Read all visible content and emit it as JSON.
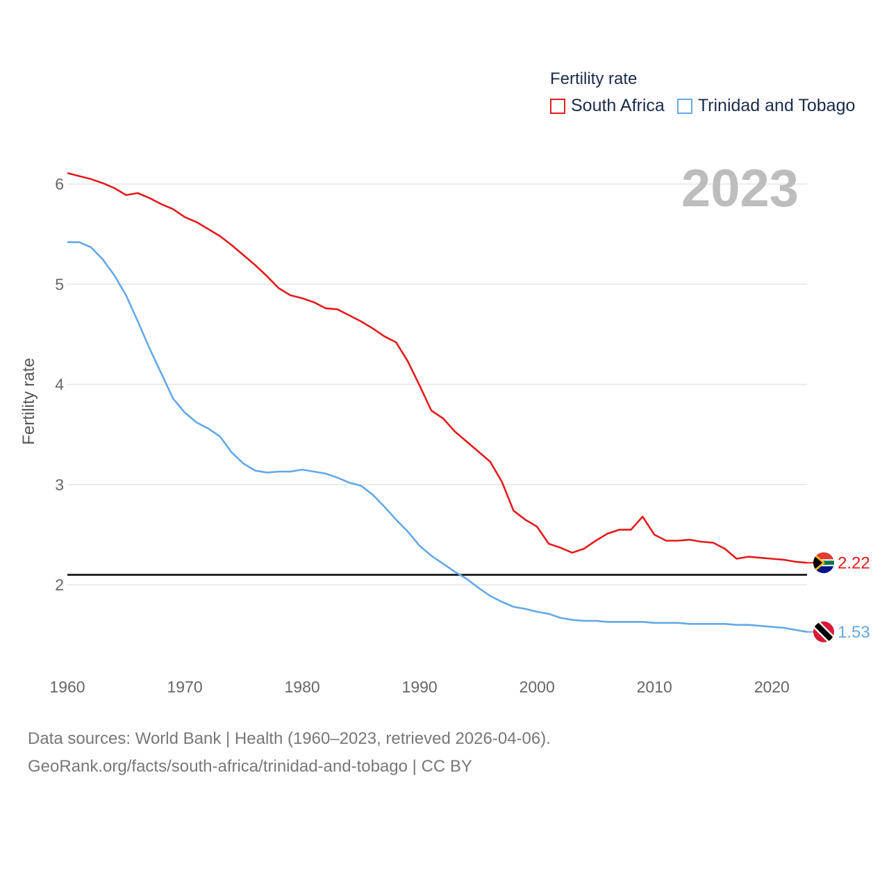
{
  "legend": {
    "title": "Fertility rate",
    "items": [
      {
        "label": "South Africa",
        "color": "#e31a1c"
      },
      {
        "label": "Trinidad and Tobago",
        "color": "#63a8e8"
      }
    ]
  },
  "year_label": "2023",
  "source": {
    "line1": "Data sources: World Bank | Health (1960–2023, retrieved 2026-04-06).",
    "line2": "GeoRank.org/facts/south-africa/trinidad-and-tobago | CC BY"
  },
  "chart_data": {
    "type": "line",
    "title": "Fertility rate",
    "xlabel": "",
    "ylabel": "Fertility rate",
    "xlim": [
      1960,
      2023
    ],
    "ylim": [
      1.3,
      6.25
    ],
    "x_ticks": [
      1960,
      1970,
      1980,
      1990,
      2000,
      2010,
      2020
    ],
    "y_ticks": [
      2,
      3,
      4,
      5,
      6
    ],
    "grid": true,
    "reference_line": {
      "y": 2.1,
      "color": "#000000"
    },
    "x": [
      1960,
      1961,
      1962,
      1963,
      1964,
      1965,
      1966,
      1967,
      1968,
      1969,
      1970,
      1971,
      1972,
      1973,
      1974,
      1975,
      1976,
      1977,
      1978,
      1979,
      1980,
      1981,
      1982,
      1983,
      1984,
      1985,
      1986,
      1987,
      1988,
      1989,
      1990,
      1991,
      1992,
      1993,
      1994,
      1995,
      1996,
      1997,
      1998,
      1999,
      2000,
      2001,
      2002,
      2003,
      2004,
      2005,
      2006,
      2007,
      2008,
      2009,
      2010,
      2011,
      2012,
      2013,
      2014,
      2015,
      2016,
      2017,
      2018,
      2019,
      2020,
      2021,
      2022,
      2023
    ],
    "series": [
      {
        "name": "South Africa",
        "color": "#e31a1c",
        "end_label": "2.22",
        "values": [
          6.11,
          6.08,
          6.05,
          6.01,
          5.96,
          5.89,
          5.91,
          5.86,
          5.8,
          5.75,
          5.67,
          5.62,
          5.55,
          5.48,
          5.39,
          5.29,
          5.19,
          5.08,
          4.96,
          4.89,
          4.86,
          4.82,
          4.76,
          4.75,
          4.69,
          4.63,
          4.56,
          4.48,
          4.42,
          4.23,
          3.99,
          3.74,
          3.66,
          3.53,
          3.43,
          3.33,
          3.23,
          3.03,
          2.74,
          2.65,
          2.58,
          2.41,
          2.37,
          2.32,
          2.36,
          2.44,
          2.51,
          2.55,
          2.55,
          2.68,
          2.5,
          2.44,
          2.44,
          2.45,
          2.43,
          2.42,
          2.36,
          2.26,
          2.28,
          2.27,
          2.26,
          2.25,
          2.23,
          2.22
        ]
      },
      {
        "name": "Trinidad and Tobago",
        "color": "#63a8e8",
        "end_label": "1.53",
        "values": [
          5.42,
          5.42,
          5.37,
          5.25,
          5.09,
          4.89,
          4.63,
          4.36,
          4.11,
          3.86,
          3.72,
          3.62,
          3.56,
          3.48,
          3.32,
          3.21,
          3.14,
          3.12,
          3.13,
          3.13,
          3.15,
          3.13,
          3.11,
          3.07,
          3.02,
          2.99,
          2.9,
          2.78,
          2.65,
          2.53,
          2.39,
          2.29,
          2.21,
          2.13,
          2.06,
          1.97,
          1.89,
          1.83,
          1.78,
          1.76,
          1.73,
          1.71,
          1.67,
          1.65,
          1.64,
          1.64,
          1.63,
          1.63,
          1.63,
          1.63,
          1.62,
          1.62,
          1.62,
          1.61,
          1.61,
          1.61,
          1.61,
          1.6,
          1.6,
          1.59,
          1.58,
          1.57,
          1.55,
          1.53
        ]
      }
    ]
  }
}
